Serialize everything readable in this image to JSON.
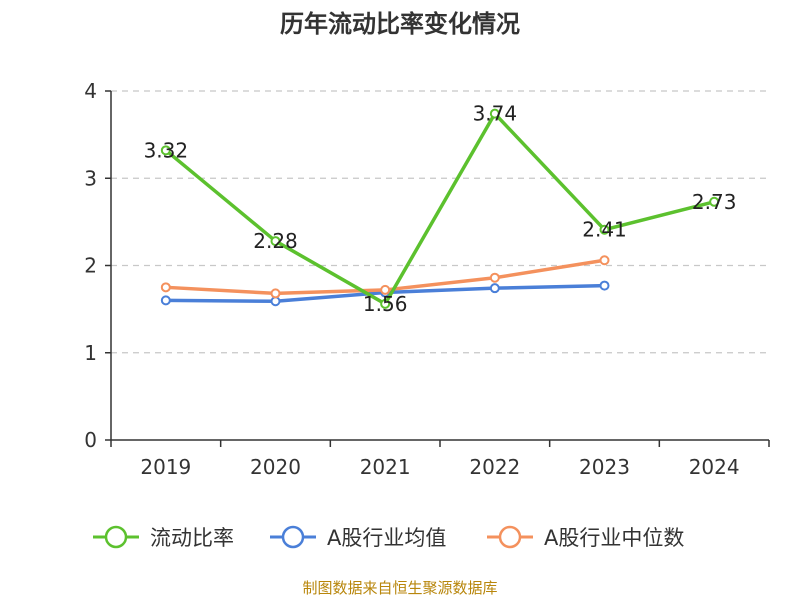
{
  "chart_data": {
    "type": "line",
    "title": "历年流动比率变化情况",
    "categories": [
      "2019",
      "2020",
      "2021",
      "2022",
      "2023",
      "2024"
    ],
    "ylim": [
      0,
      4
    ],
    "yticks": [
      0,
      1,
      2,
      3,
      4
    ],
    "grid": true,
    "legend_position": "bottom",
    "series": [
      {
        "name": "流动比率",
        "color": "#5cc12e",
        "values": [
          3.32,
          2.28,
          1.56,
          3.74,
          2.41,
          2.73
        ],
        "show_labels": true
      },
      {
        "name": "A股行业均值",
        "color": "#4a7fd8",
        "values": [
          1.6,
          1.59,
          1.69,
          1.74,
          1.77,
          null
        ],
        "show_labels": false
      },
      {
        "name": "A股行业中位数",
        "color": "#f4915d",
        "values": [
          1.75,
          1.68,
          1.72,
          1.86,
          2.06,
          null
        ],
        "show_labels": false
      }
    ],
    "source": "制图数据来自恒生聚源数据库"
  }
}
